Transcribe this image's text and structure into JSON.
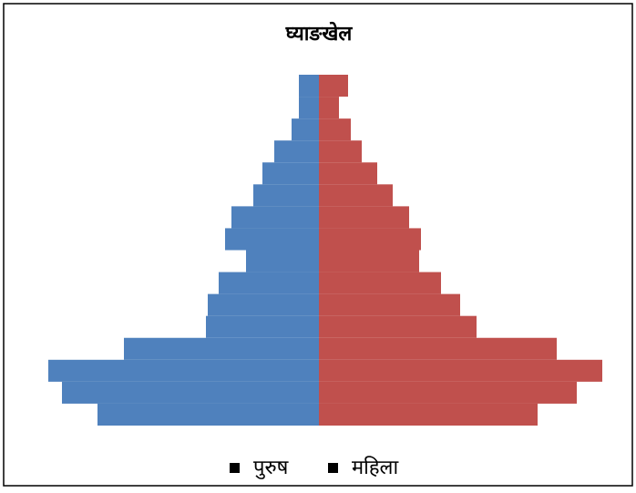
{
  "chart_data": {
    "type": "pyramid",
    "title": "घ्याङखेल",
    "categories": [
      null,
      null,
      null,
      null,
      null,
      null,
      null,
      null,
      null,
      null,
      null,
      null,
      null,
      null,
      null,
      null
    ],
    "series": [
      {
        "name": "पुरुष",
        "color": "#4f81bd",
        "values": [
          22,
          22,
          30,
          49,
          62,
          72,
          96,
          103,
          80,
          110,
          122,
          124,
          214,
          297,
          282,
          243
        ]
      },
      {
        "name": "महिला",
        "color": "#c0504d",
        "values": [
          32,
          22,
          35,
          47,
          64,
          81,
          99,
          112,
          110,
          134,
          155,
          173,
          261,
          311,
          283,
          240
        ]
      }
    ],
    "xlim": [
      0,
      300
    ]
  }
}
